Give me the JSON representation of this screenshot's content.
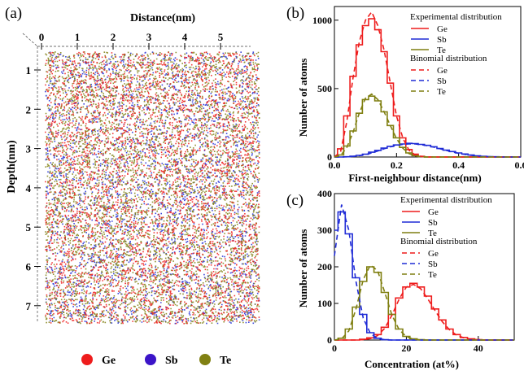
{
  "colors": {
    "Ge": "#ee1c1c",
    "Sb": "#1f2bd6",
    "Te": "#7f7f10",
    "Sb_legend": "#3b14c8",
    "Te_legend": "#808012",
    "axis": "#000000"
  },
  "chart_data": [
    {
      "id": "a",
      "panel_label": "(a)",
      "type": "scatter",
      "xlabel": "Distance(nm)",
      "ylabel": "Depth(nm)",
      "xlim": [
        0,
        5.8
      ],
      "ylim": [
        0.6,
        7.3
      ],
      "x_ticks": [
        0,
        1,
        2,
        3,
        4,
        5
      ],
      "y_ticks": [
        1,
        2,
        3,
        4,
        5,
        6,
        7
      ],
      "x_axis_position": "top",
      "series": [
        {
          "name": "Ge",
          "share": 0.34
        },
        {
          "name": "Sb",
          "share": 0.22
        },
        {
          "name": "Te",
          "share": 0.44
        }
      ],
      "legend": {
        "position": "bottom-center",
        "labels": [
          "Ge",
          "Sb",
          "Te"
        ]
      }
    },
    {
      "id": "b",
      "panel_label": "(b)",
      "type": "line",
      "xlabel": "First-neighbour distance(nm)",
      "ylabel": "Number of atoms",
      "xlim": [
        0,
        0.6
      ],
      "ylim": [
        0,
        1100
      ],
      "x_ticks": [
        "0.0",
        "0.2",
        "0.4",
        "0.6"
      ],
      "y_ticks": [
        "0",
        "500",
        "1000"
      ],
      "x": [
        0.0,
        0.02,
        0.04,
        0.06,
        0.08,
        0.1,
        0.12,
        0.14,
        0.16,
        0.18,
        0.2,
        0.22,
        0.24,
        0.26,
        0.28,
        0.3,
        0.32,
        0.34,
        0.36,
        0.38,
        0.4,
        0.42,
        0.44,
        0.46,
        0.48,
        0.5,
        0.52,
        0.54,
        0.56,
        0.58,
        0.6
      ],
      "legend": {
        "position": "top-right",
        "experimental_title": "Experimental distribution",
        "binomial_title": "Binomial distribution",
        "labels": [
          "Ge",
          "Sb",
          "Te"
        ]
      },
      "series": [
        {
          "name": "Ge",
          "kind": "experimental",
          "values": [
            0,
            60,
            300,
            590,
            820,
            960,
            1010,
            930,
            770,
            540,
            300,
            140,
            55,
            20,
            5,
            0,
            0,
            0,
            0,
            0,
            0,
            0,
            0,
            0,
            0,
            0,
            0,
            0,
            0,
            0,
            0
          ]
        },
        {
          "name": "Sb",
          "kind": "experimental",
          "values": [
            0,
            0,
            2,
            6,
            12,
            20,
            35,
            48,
            65,
            78,
            88,
            95,
            100,
            98,
            92,
            85,
            75,
            62,
            50,
            40,
            30,
            22,
            14,
            9,
            5,
            3,
            2,
            0,
            0,
            0,
            0
          ]
        },
        {
          "name": "Te",
          "kind": "experimental",
          "values": [
            0,
            15,
            80,
            190,
            320,
            420,
            445,
            410,
            330,
            230,
            140,
            70,
            30,
            10,
            3,
            0,
            0,
            0,
            0,
            0,
            0,
            0,
            0,
            0,
            0,
            0,
            0,
            0,
            0,
            0,
            0
          ]
        },
        {
          "name": "Ge",
          "kind": "binomial",
          "values": [
            0,
            40,
            260,
            580,
            840,
            1000,
            1060,
            960,
            780,
            540,
            300,
            140,
            50,
            15,
            4,
            0,
            0,
            0,
            0,
            0,
            0,
            0,
            0,
            0,
            0,
            0,
            0,
            0,
            0,
            0,
            0
          ]
        },
        {
          "name": "Sb",
          "kind": "binomial",
          "values": [
            0,
            0,
            1,
            4,
            10,
            18,
            30,
            44,
            60,
            74,
            85,
            92,
            96,
            95,
            90,
            82,
            72,
            60,
            48,
            37,
            27,
            19,
            12,
            7,
            4,
            2,
            1,
            0,
            0,
            0,
            0
          ]
        },
        {
          "name": "Te",
          "kind": "binomial",
          "values": [
            0,
            10,
            70,
            180,
            320,
            430,
            460,
            420,
            330,
            230,
            135,
            65,
            25,
            8,
            2,
            0,
            0,
            0,
            0,
            0,
            0,
            0,
            0,
            0,
            0,
            0,
            0,
            0,
            0,
            0,
            0
          ]
        }
      ]
    },
    {
      "id": "c",
      "panel_label": "(c)",
      "type": "line",
      "xlabel": "Concentration (at%)",
      "ylabel": "Number of atoms",
      "xlim": [
        0,
        50
      ],
      "ylim": [
        0,
        400
      ],
      "x_ticks": [
        "0",
        "20",
        "40"
      ],
      "y_ticks": [
        "0",
        "100",
        "200",
        "300",
        "400"
      ],
      "x": [
        0,
        2,
        4,
        6,
        8,
        10,
        12,
        14,
        16,
        18,
        20,
        22,
        24,
        26,
        28,
        30,
        32,
        34,
        36,
        38,
        40,
        42,
        44,
        46,
        48,
        50
      ],
      "legend": {
        "position": "top-right",
        "experimental_title": "Experimental distribution",
        "binomial_title": "Binomial distribution",
        "labels": [
          "Ge",
          "Sb",
          "Te"
        ]
      },
      "series": [
        {
          "name": "Ge",
          "kind": "experimental",
          "values": [
            0,
            0,
            0,
            0,
            2,
            6,
            15,
            35,
            70,
            115,
            145,
            155,
            145,
            120,
            85,
            55,
            30,
            15,
            7,
            3,
            1,
            0,
            0,
            0,
            0,
            0
          ]
        },
        {
          "name": "Sb",
          "kind": "experimental",
          "values": [
            300,
            350,
            290,
            170,
            70,
            20,
            5,
            1,
            0,
            0,
            0,
            0,
            0,
            0,
            0,
            0,
            0,
            0,
            0,
            0,
            0,
            0,
            0,
            0,
            0,
            0
          ]
        },
        {
          "name": "Te",
          "kind": "experimental",
          "values": [
            0,
            5,
            30,
            90,
            160,
            200,
            185,
            130,
            70,
            30,
            10,
            3,
            1,
            0,
            0,
            0,
            0,
            0,
            0,
            0,
            0,
            0,
            0,
            0,
            0,
            0
          ]
        },
        {
          "name": "Ge",
          "kind": "binomial",
          "values": [
            0,
            0,
            0,
            0,
            1,
            4,
            12,
            32,
            68,
            112,
            145,
            152,
            140,
            112,
            80,
            50,
            28,
            13,
            6,
            2,
            1,
            0,
            0,
            0,
            0,
            0
          ]
        },
        {
          "name": "Sb",
          "kind": "binomial",
          "values": [
            230,
            370,
            300,
            160,
            60,
            18,
            4,
            1,
            0,
            0,
            0,
            0,
            0,
            0,
            0,
            0,
            0,
            0,
            0,
            0,
            0,
            0,
            0,
            0,
            0,
            0
          ]
        },
        {
          "name": "Te",
          "kind": "binomial",
          "values": [
            0,
            3,
            25,
            85,
            165,
            205,
            190,
            130,
            68,
            28,
            9,
            2,
            0,
            0,
            0,
            0,
            0,
            0,
            0,
            0,
            0,
            0,
            0,
            0,
            0,
            0
          ]
        }
      ]
    }
  ]
}
